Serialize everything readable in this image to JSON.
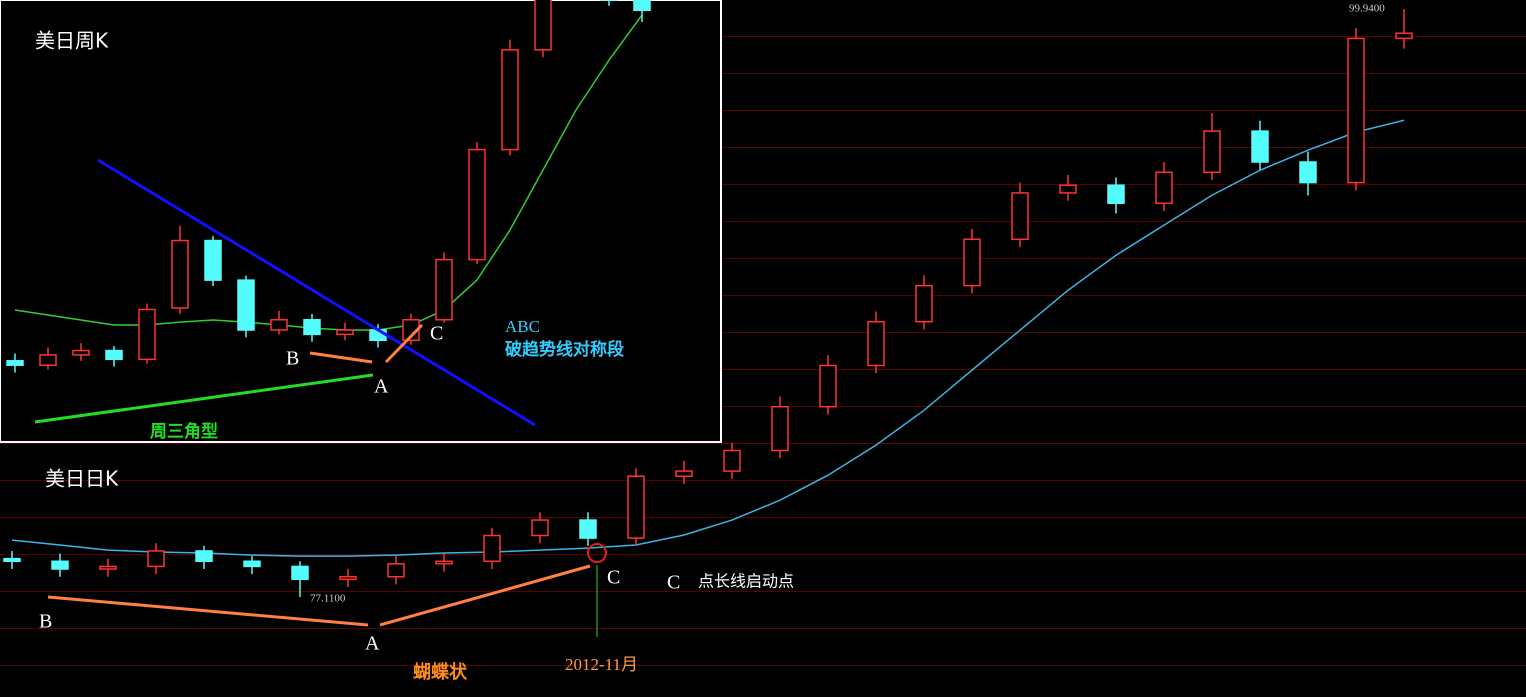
{
  "chart_data": [
    {
      "type": "candlestick",
      "title": "美日周K",
      "open": [
        77.4,
        77.1,
        77.8,
        78.1,
        77.5,
        81.0,
        85.6,
        82.9,
        79.5,
        80.2,
        79.2,
        79.5,
        78.8,
        80.2,
        84.3,
        91.8,
        98.6,
        103.4,
        104.0,
        102.0
      ],
      "high": [
        77.9,
        78.3,
        78.6,
        78.4,
        81.3,
        86.6,
        85.9,
        83.2,
        80.8,
        80.6,
        80.0,
        79.9,
        80.6,
        84.8,
        92.3,
        99.3,
        104.1,
        105.0,
        104.5,
        102.8
      ],
      "low": [
        76.6,
        76.8,
        77.4,
        77.0,
        77.2,
        80.6,
        82.5,
        79.0,
        79.2,
        78.7,
        78.8,
        78.3,
        78.5,
        80.0,
        84.0,
        91.4,
        98.1,
        102.8,
        101.6,
        100.5
      ],
      "close": [
        77.1,
        77.8,
        78.1,
        77.5,
        80.9,
        85.6,
        82.9,
        79.5,
        80.2,
        79.2,
        79.5,
        78.8,
        80.2,
        84.3,
        91.8,
        98.6,
        103.4,
        104.0,
        102.0,
        101.3
      ],
      "up_color": "#ff3232",
      "down_color": "#54fcfc",
      "ma": {
        "color": "#33cc33",
        "values": [
          80.86,
          80.52,
          80.18,
          79.84,
          79.84,
          80.04,
          80.18,
          80.04,
          79.84,
          79.63,
          79.5,
          79.5,
          79.84,
          80.86,
          82.91,
          86.32,
          90.41,
          94.5,
          97.9,
          100.97
        ]
      },
      "ylim": [
        72,
        102
      ],
      "annotations": [
        "ABC",
        "破趋势线对称段",
        "周三角型",
        "B",
        "A",
        "C"
      ]
    },
    {
      "type": "candlestick",
      "title": "美日日K",
      "open": [
        78.6,
        78.5,
        78.2,
        78.3,
        78.9,
        78.5,
        78.3,
        77.8,
        77.9,
        78.4,
        78.5,
        79.5,
        80.1,
        79.4,
        81.8,
        82.0,
        82.8,
        84.5,
        86.1,
        87.8,
        89.2,
        91.0,
        92.8,
        93.1,
        92.4,
        93.6,
        95.2,
        94.0,
        93.2,
        98.8
      ],
      "high": [
        78.9,
        78.8,
        78.6,
        79.2,
        79.1,
        78.7,
        78.5,
        78.2,
        78.7,
        78.8,
        79.8,
        80.4,
        80.4,
        82.1,
        82.4,
        83.1,
        84.9,
        86.5,
        88.2,
        89.6,
        91.4,
        93.2,
        93.5,
        93.4,
        94.0,
        95.9,
        95.6,
        94.4,
        99.2,
        99.94
      ],
      "low": [
        78.2,
        77.9,
        77.9,
        78.0,
        78.2,
        78.0,
        77.11,
        77.5,
        77.6,
        78.1,
        78.2,
        79.2,
        79.1,
        79.1,
        81.5,
        81.7,
        82.5,
        84.2,
        85.8,
        87.5,
        88.9,
        90.7,
        92.5,
        92.0,
        92.1,
        93.3,
        93.7,
        92.7,
        92.9,
        98.4
      ],
      "close": [
        78.5,
        78.2,
        78.3,
        78.9,
        78.5,
        78.3,
        77.8,
        77.9,
        78.4,
        78.5,
        79.5,
        80.1,
        79.4,
        81.8,
        82.0,
        82.8,
        84.5,
        86.1,
        87.8,
        89.2,
        91.0,
        92.8,
        93.1,
        92.4,
        93.6,
        95.2,
        94.0,
        93.2,
        98.8,
        99.0
      ],
      "high_value_labels": [
        null,
        null,
        null,
        null,
        null,
        null,
        null,
        null,
        null,
        null,
        null,
        null,
        null,
        null,
        null,
        null,
        null,
        null,
        null,
        null,
        null,
        null,
        null,
        null,
        null,
        null,
        null,
        null,
        null,
        "99.9400"
      ],
      "low_value_labels": [
        null,
        null,
        null,
        null,
        null,
        null,
        "77.1100",
        null,
        null,
        null,
        null,
        null,
        null,
        null,
        null,
        null,
        null,
        null,
        null,
        null,
        null,
        null,
        null,
        null,
        null,
        null,
        null,
        null,
        null,
        null
      ],
      "up_color": "#ff3232",
      "down_color": "#54fcfc",
      "ma": {
        "color": "#3cb4e6",
        "values": [
          79.32,
          79.13,
          78.93,
          78.86,
          78.82,
          78.74,
          78.7,
          78.7,
          78.74,
          78.82,
          78.86,
          78.93,
          79.01,
          79.13,
          79.52,
          80.1,
          80.87,
          81.84,
          83.01,
          84.36,
          85.92,
          87.47,
          89.02,
          90.38,
          91.55,
          92.71,
          93.68,
          94.46,
          95.16,
          95.62
        ]
      },
      "ylim": [
        73.23,
        100.29
      ],
      "annotations": [
        "B",
        "A",
        "C",
        "C",
        "点长线启动点",
        "蝴蝶状",
        "2012-11月"
      ]
    }
  ]
}
